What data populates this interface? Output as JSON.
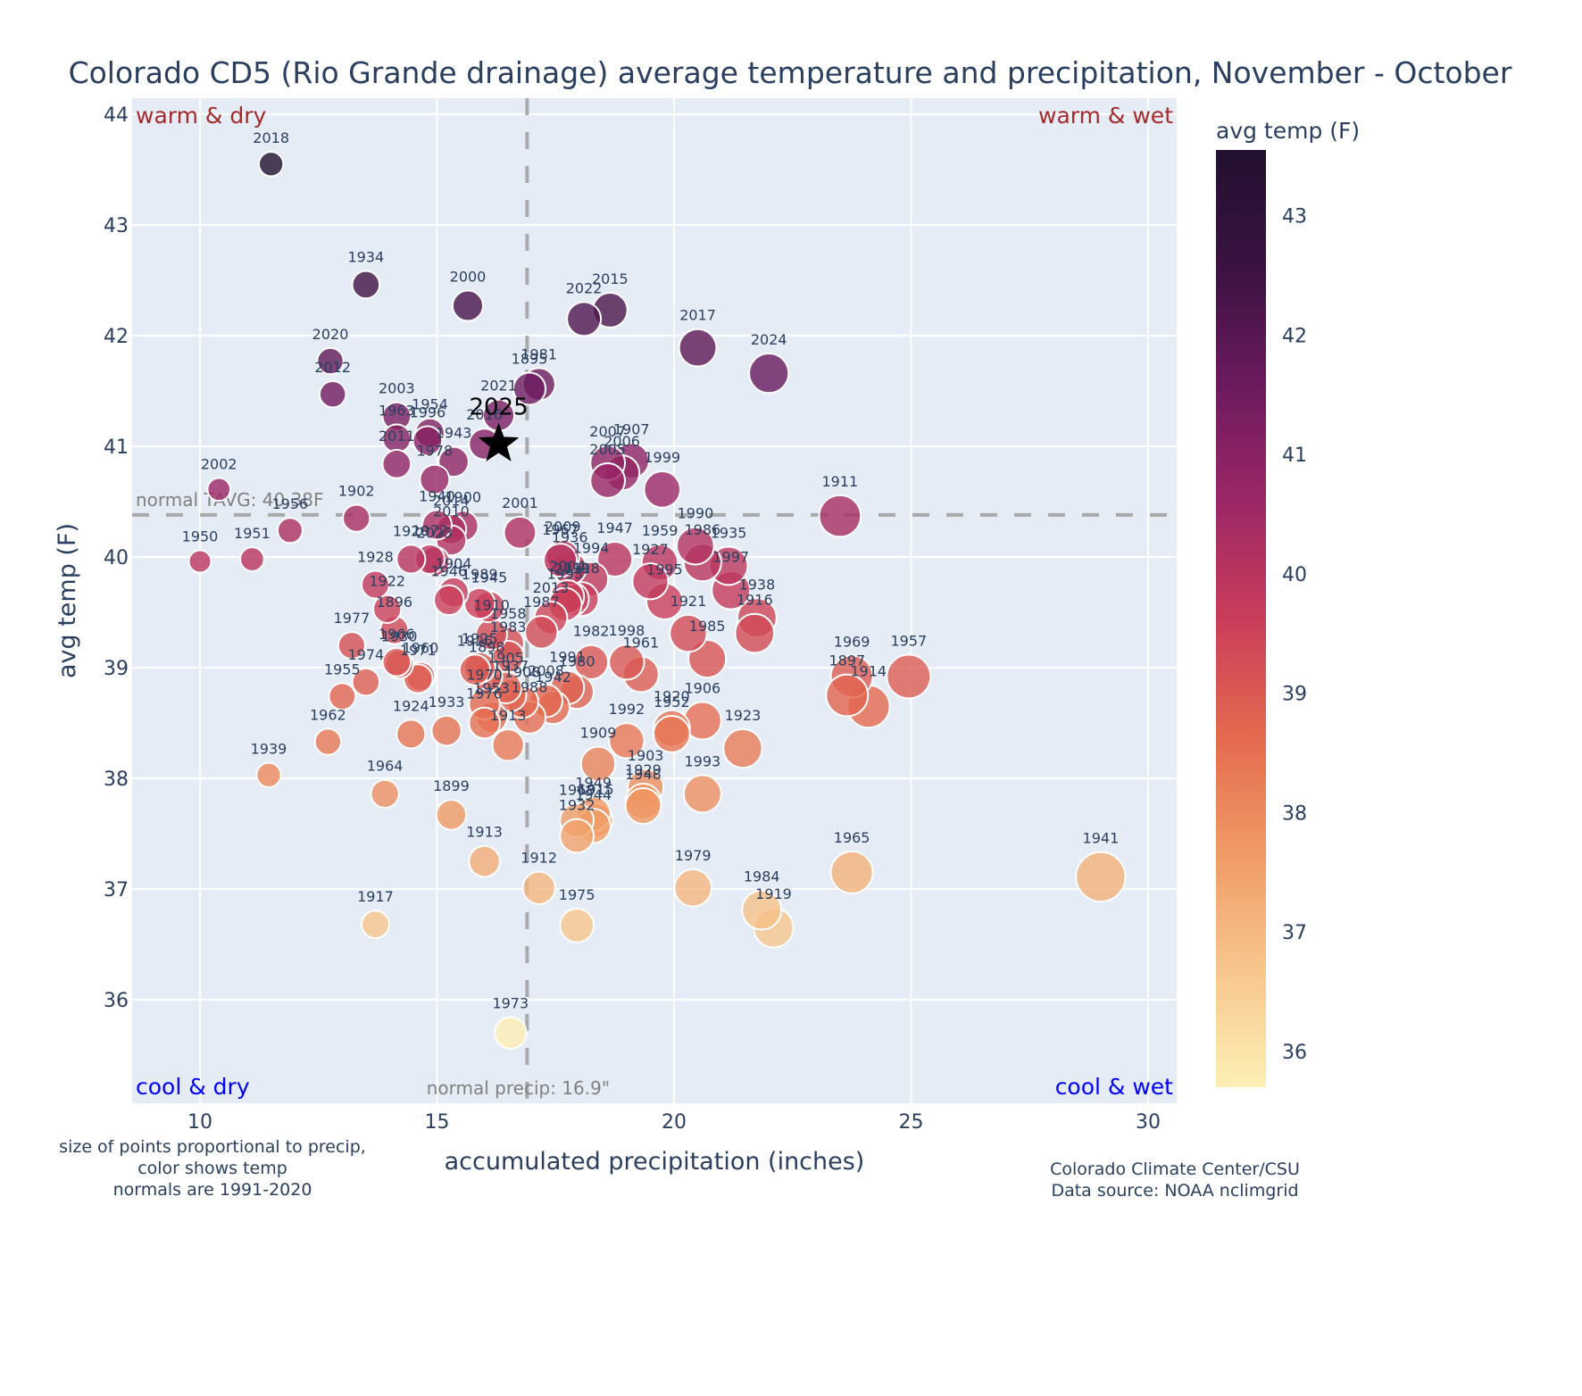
{
  "chart_data": {
    "type": "scatter",
    "title": "Colorado CD5 (Rio Grande drainage) average temperature and precipitation, November - October",
    "xlabel": "accumulated precipitation (inches)",
    "ylabel": "avg temp (F)",
    "xlim": [
      8.6,
      30.6
    ],
    "ylim": [
      35.1,
      44.1
    ],
    "xticks": [
      10,
      15,
      20,
      25,
      30
    ],
    "yticks": [
      36,
      37,
      38,
      39,
      40,
      41,
      42,
      43,
      44
    ],
    "grid": true,
    "size_encodes": "precipitation",
    "color_encodes": "avg temp (F)",
    "colorscale": "magma-reversed",
    "colorbar": {
      "title": "avg temp (F)",
      "range": [
        35.7,
        43.55
      ],
      "ticks": [
        36,
        37,
        38,
        39,
        40,
        41,
        42,
        43
      ],
      "colors": [
        "#fcefb4",
        "#f7c68d",
        "#f09a64",
        "#e4694f",
        "#c93d5a",
        "#9c2766",
        "#6b1a5e",
        "#3a1241",
        "#22102f"
      ]
    },
    "reference_lines": {
      "normal_temp": 40.38,
      "normal_temp_label": "normal TAVG: 40.38F",
      "normal_precip": 16.9,
      "normal_precip_label": "normal precip: 16.9\""
    },
    "quadrant_labels": {
      "top_left": "warm & dry",
      "top_right": "warm & wet",
      "bottom_left": "cool & dry",
      "bottom_right": "cool & wet"
    },
    "highlight": {
      "label": "2025",
      "x": 16.3,
      "y": 41.02,
      "marker": "star"
    },
    "points": [
      {
        "year": "2018",
        "x": 11.5,
        "y": 43.55
      },
      {
        "year": "1934",
        "x": 13.5,
        "y": 42.46
      },
      {
        "year": "2000",
        "x": 15.65,
        "y": 42.27
      },
      {
        "year": "2015",
        "x": 18.65,
        "y": 42.23
      },
      {
        "year": "2022",
        "x": 18.1,
        "y": 42.15
      },
      {
        "year": "2017",
        "x": 20.5,
        "y": 41.89
      },
      {
        "year": "2024",
        "x": 22.0,
        "y": 41.66
      },
      {
        "year": "2020",
        "x": 12.75,
        "y": 41.77
      },
      {
        "year": "2012",
        "x": 12.8,
        "y": 41.47
      },
      {
        "year": "1981",
        "x": 17.15,
        "y": 41.56
      },
      {
        "year": "1895",
        "x": 16.95,
        "y": 41.52
      },
      {
        "year": "2021",
        "x": 16.3,
        "y": 41.28
      },
      {
        "year": "2016",
        "x": 16.0,
        "y": 41.02
      },
      {
        "year": "2003",
        "x": 14.15,
        "y": 41.27
      },
      {
        "year": "1963",
        "x": 14.15,
        "y": 41.07
      },
      {
        "year": "1996",
        "x": 14.8,
        "y": 41.05
      },
      {
        "year": "1954",
        "x": 14.85,
        "y": 41.12
      },
      {
        "year": "1943",
        "x": 15.35,
        "y": 40.86
      },
      {
        "year": "2011",
        "x": 14.15,
        "y": 40.84
      },
      {
        "year": "1978",
        "x": 14.95,
        "y": 40.7
      },
      {
        "year": "2007",
        "x": 18.6,
        "y": 40.85
      },
      {
        "year": "1907",
        "x": 19.1,
        "y": 40.87
      },
      {
        "year": "2005",
        "x": 18.6,
        "y": 40.69
      },
      {
        "year": "2006",
        "x": 18.9,
        "y": 40.76
      },
      {
        "year": "1999",
        "x": 19.75,
        "y": 40.61
      },
      {
        "year": "2002",
        "x": 10.4,
        "y": 40.61
      },
      {
        "year": "1902",
        "x": 13.3,
        "y": 40.35
      },
      {
        "year": "1956",
        "x": 11.9,
        "y": 40.24
      },
      {
        "year": "1940",
        "x": 15.0,
        "y": 40.29
      },
      {
        "year": "1900",
        "x": 15.55,
        "y": 40.28
      },
      {
        "year": "2014",
        "x": 15.3,
        "y": 40.25
      },
      {
        "year": "2001",
        "x": 16.75,
        "y": 40.22
      },
      {
        "year": "1911",
        "x": 23.5,
        "y": 40.37
      },
      {
        "year": "1950",
        "x": 10.0,
        "y": 39.96
      },
      {
        "year": "1951",
        "x": 11.1,
        "y": 39.98
      },
      {
        "year": "1920",
        "x": 14.45,
        "y": 39.98
      },
      {
        "year": "1972",
        "x": 14.85,
        "y": 39.98
      },
      {
        "year": "2023",
        "x": 14.95,
        "y": 39.96
      },
      {
        "year": "2010",
        "x": 15.3,
        "y": 40.15
      },
      {
        "year": "1928",
        "x": 13.7,
        "y": 39.75
      },
      {
        "year": "1904",
        "x": 15.35,
        "y": 39.68
      },
      {
        "year": "1946",
        "x": 15.25,
        "y": 39.61
      },
      {
        "year": "1989",
        "x": 15.9,
        "y": 39.58
      },
      {
        "year": "1945",
        "x": 16.1,
        "y": 39.55
      },
      {
        "year": "1922",
        "x": 13.95,
        "y": 39.53
      },
      {
        "year": "1896",
        "x": 14.1,
        "y": 39.34
      },
      {
        "year": "1977",
        "x": 13.2,
        "y": 39.2
      },
      {
        "year": "1930",
        "x": 14.2,
        "y": 39.03
      },
      {
        "year": "1966",
        "x": 14.15,
        "y": 39.05
      },
      {
        "year": "1960",
        "x": 14.65,
        "y": 38.92
      },
      {
        "year": "1971",
        "x": 14.6,
        "y": 38.9
      },
      {
        "year": "1974",
        "x": 13.5,
        "y": 38.87
      },
      {
        "year": "1955",
        "x": 13.0,
        "y": 38.74
      },
      {
        "year": "1962",
        "x": 12.7,
        "y": 38.33
      },
      {
        "year": "1924",
        "x": 14.45,
        "y": 38.4
      },
      {
        "year": "1933",
        "x": 15.2,
        "y": 38.43
      },
      {
        "year": "1910",
        "x": 16.15,
        "y": 39.3
      },
      {
        "year": "1958",
        "x": 16.5,
        "y": 39.22
      },
      {
        "year": "1983",
        "x": 16.5,
        "y": 39.1
      },
      {
        "year": "1925",
        "x": 15.9,
        "y": 39.0
      },
      {
        "year": "1898",
        "x": 16.05,
        "y": 38.92
      },
      {
        "year": "1926",
        "x": 15.8,
        "y": 38.98
      },
      {
        "year": "1905",
        "x": 16.45,
        "y": 38.82
      },
      {
        "year": "1937",
        "x": 16.55,
        "y": 38.75
      },
      {
        "year": "1908",
        "x": 16.8,
        "y": 38.69
      },
      {
        "year": "2008",
        "x": 17.3,
        "y": 38.7
      },
      {
        "year": "1970",
        "x": 16.0,
        "y": 38.67
      },
      {
        "year": "1953",
        "x": 16.15,
        "y": 38.55
      },
      {
        "year": "1942",
        "x": 17.45,
        "y": 38.64
      },
      {
        "year": "1976",
        "x": 16.0,
        "y": 38.5
      },
      {
        "year": "1988",
        "x": 16.95,
        "y": 38.55
      },
      {
        "year": "1913",
        "x": 16.5,
        "y": 38.3
      },
      {
        "year": "1987",
        "x": 17.2,
        "y": 39.32
      },
      {
        "year": "2013",
        "x": 17.4,
        "y": 39.45
      },
      {
        "year": "1993b",
        "x": 17.7,
        "y": 39.57
      },
      {
        "year": "2004",
        "x": 17.75,
        "y": 39.64
      },
      {
        "year": "2019",
        "x": 17.85,
        "y": 39.62
      },
      {
        "year": "1918",
        "x": 18.05,
        "y": 39.62
      },
      {
        "year": "1967",
        "x": 17.6,
        "y": 39.97
      },
      {
        "year": "2009",
        "x": 17.65,
        "y": 40.0
      },
      {
        "year": "1936",
        "x": 17.8,
        "y": 39.9
      },
      {
        "year": "1994",
        "x": 18.25,
        "y": 39.8
      },
      {
        "year": "1947",
        "x": 18.75,
        "y": 39.98
      },
      {
        "year": "1959",
        "x": 19.7,
        "y": 39.95
      },
      {
        "year": "1927",
        "x": 19.5,
        "y": 39.78
      },
      {
        "year": "1995",
        "x": 19.8,
        "y": 39.6
      },
      {
        "year": "1990",
        "x": 20.45,
        "y": 40.1
      },
      {
        "year": "1986",
        "x": 20.6,
        "y": 39.95
      },
      {
        "year": "1935",
        "x": 21.15,
        "y": 39.92
      },
      {
        "year": "1997",
        "x": 21.2,
        "y": 39.7
      },
      {
        "year": "1921",
        "x": 20.3,
        "y": 39.31
      },
      {
        "year": "1985",
        "x": 20.7,
        "y": 39.08
      },
      {
        "year": "1938",
        "x": 21.75,
        "y": 39.45
      },
      {
        "year": "1916",
        "x": 21.7,
        "y": 39.31
      },
      {
        "year": "1982",
        "x": 18.25,
        "y": 39.05
      },
      {
        "year": "1998",
        "x": 19.0,
        "y": 39.05
      },
      {
        "year": "1961",
        "x": 19.3,
        "y": 38.94
      },
      {
        "year": "1991",
        "x": 17.75,
        "y": 38.82
      },
      {
        "year": "1980",
        "x": 17.95,
        "y": 38.78
      },
      {
        "year": "1992",
        "x": 19.0,
        "y": 38.34
      },
      {
        "year": "1909",
        "x": 18.4,
        "y": 38.13
      },
      {
        "year": "1906",
        "x": 20.6,
        "y": 38.52
      },
      {
        "year": "1920b",
        "x": 19.95,
        "y": 38.45
      },
      {
        "year": "1952",
        "x": 19.95,
        "y": 38.4
      },
      {
        "year": "1923",
        "x": 21.45,
        "y": 38.27
      },
      {
        "year": "1903",
        "x": 19.4,
        "y": 37.92
      },
      {
        "year": "1929",
        "x": 19.35,
        "y": 37.79
      },
      {
        "year": "1948",
        "x": 19.35,
        "y": 37.75
      },
      {
        "year": "1993",
        "x": 20.6,
        "y": 37.86
      },
      {
        "year": "1949",
        "x": 18.3,
        "y": 37.68
      },
      {
        "year": "1968",
        "x": 17.95,
        "y": 37.62
      },
      {
        "year": "1915",
        "x": 18.35,
        "y": 37.62
      },
      {
        "year": "1944",
        "x": 18.3,
        "y": 37.57
      },
      {
        "year": "1932",
        "x": 17.95,
        "y": 37.48
      },
      {
        "year": "1969",
        "x": 23.75,
        "y": 38.92
      },
      {
        "year": "1897",
        "x": 23.65,
        "y": 38.75
      },
      {
        "year": "1914",
        "x": 24.1,
        "y": 38.65
      },
      {
        "year": "1957",
        "x": 24.95,
        "y": 38.92
      },
      {
        "year": "1939",
        "x": 11.45,
        "y": 38.03
      },
      {
        "year": "1964",
        "x": 13.9,
        "y": 37.86
      },
      {
        "year": "1899",
        "x": 15.3,
        "y": 37.67
      },
      {
        "year": "1913b",
        "x": 16.0,
        "y": 37.25
      },
      {
        "year": "1912",
        "x": 17.15,
        "y": 37.01
      },
      {
        "year": "1975",
        "x": 17.95,
        "y": 36.67
      },
      {
        "year": "1917",
        "x": 13.7,
        "y": 36.68
      },
      {
        "year": "1979",
        "x": 20.4,
        "y": 37.01
      },
      {
        "year": "1965",
        "x": 23.75,
        "y": 37.15
      },
      {
        "year": "1984",
        "x": 21.85,
        "y": 36.81
      },
      {
        "year": "1919",
        "x": 22.1,
        "y": 36.65
      },
      {
        "year": "1941",
        "x": 29.0,
        "y": 37.11
      },
      {
        "year": "1973",
        "x": 16.55,
        "y": 35.7
      }
    ]
  },
  "notes": {
    "left": [
      "size of points proportional to precip,",
      "color shows temp",
      "normals are 1991-2020"
    ],
    "right": [
      "Colorado Climate Center/CSU",
      "Data source: NOAA nclimgrid"
    ]
  }
}
